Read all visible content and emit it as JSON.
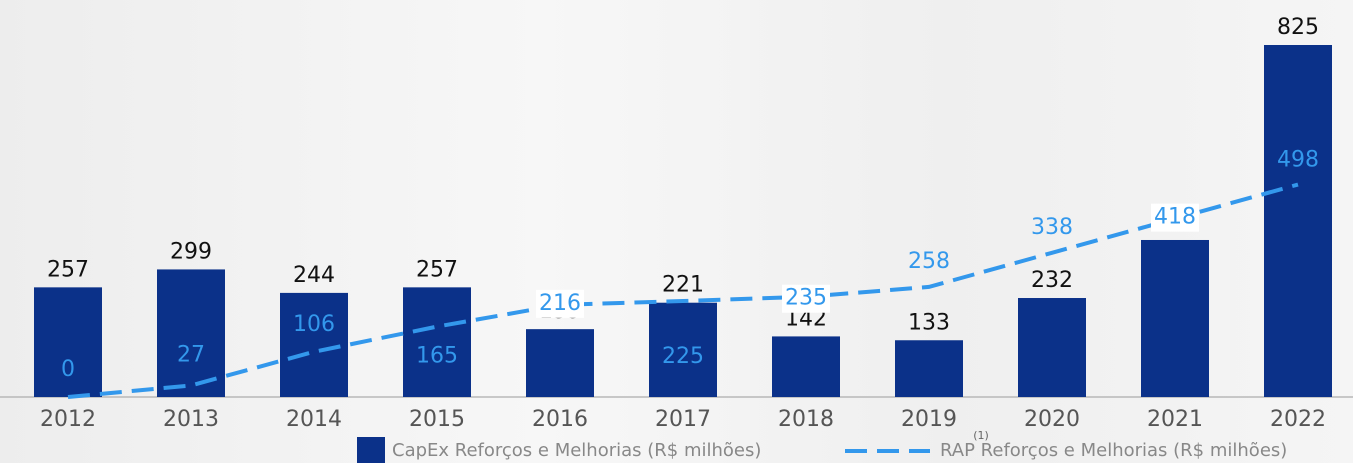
{
  "chart_data": {
    "type": "bar",
    "categories": [
      "2012",
      "2013",
      "2014",
      "2015",
      "2016",
      "2017",
      "2018",
      "2019",
      "2020",
      "2021",
      "2022"
    ],
    "series": [
      {
        "name": "CapEx Reforços e Melhorias (R$ milhões)",
        "type": "bar",
        "color": "#0b3189",
        "values": [
          257,
          299,
          244,
          257,
          159,
          221,
          142,
          133,
          232,
          368,
          825
        ]
      },
      {
        "name": "RAP Reforços e Melhorias (R$ milhões)",
        "type": "line",
        "color": "#3398ec",
        "values": [
          0,
          27,
          106,
          165,
          216,
          225,
          235,
          258,
          338,
          418,
          498
        ]
      }
    ],
    "annotations": [
      "(1)"
    ],
    "ylim": [
      0,
      825
    ],
    "grid": false,
    "legend": "bottom"
  }
}
